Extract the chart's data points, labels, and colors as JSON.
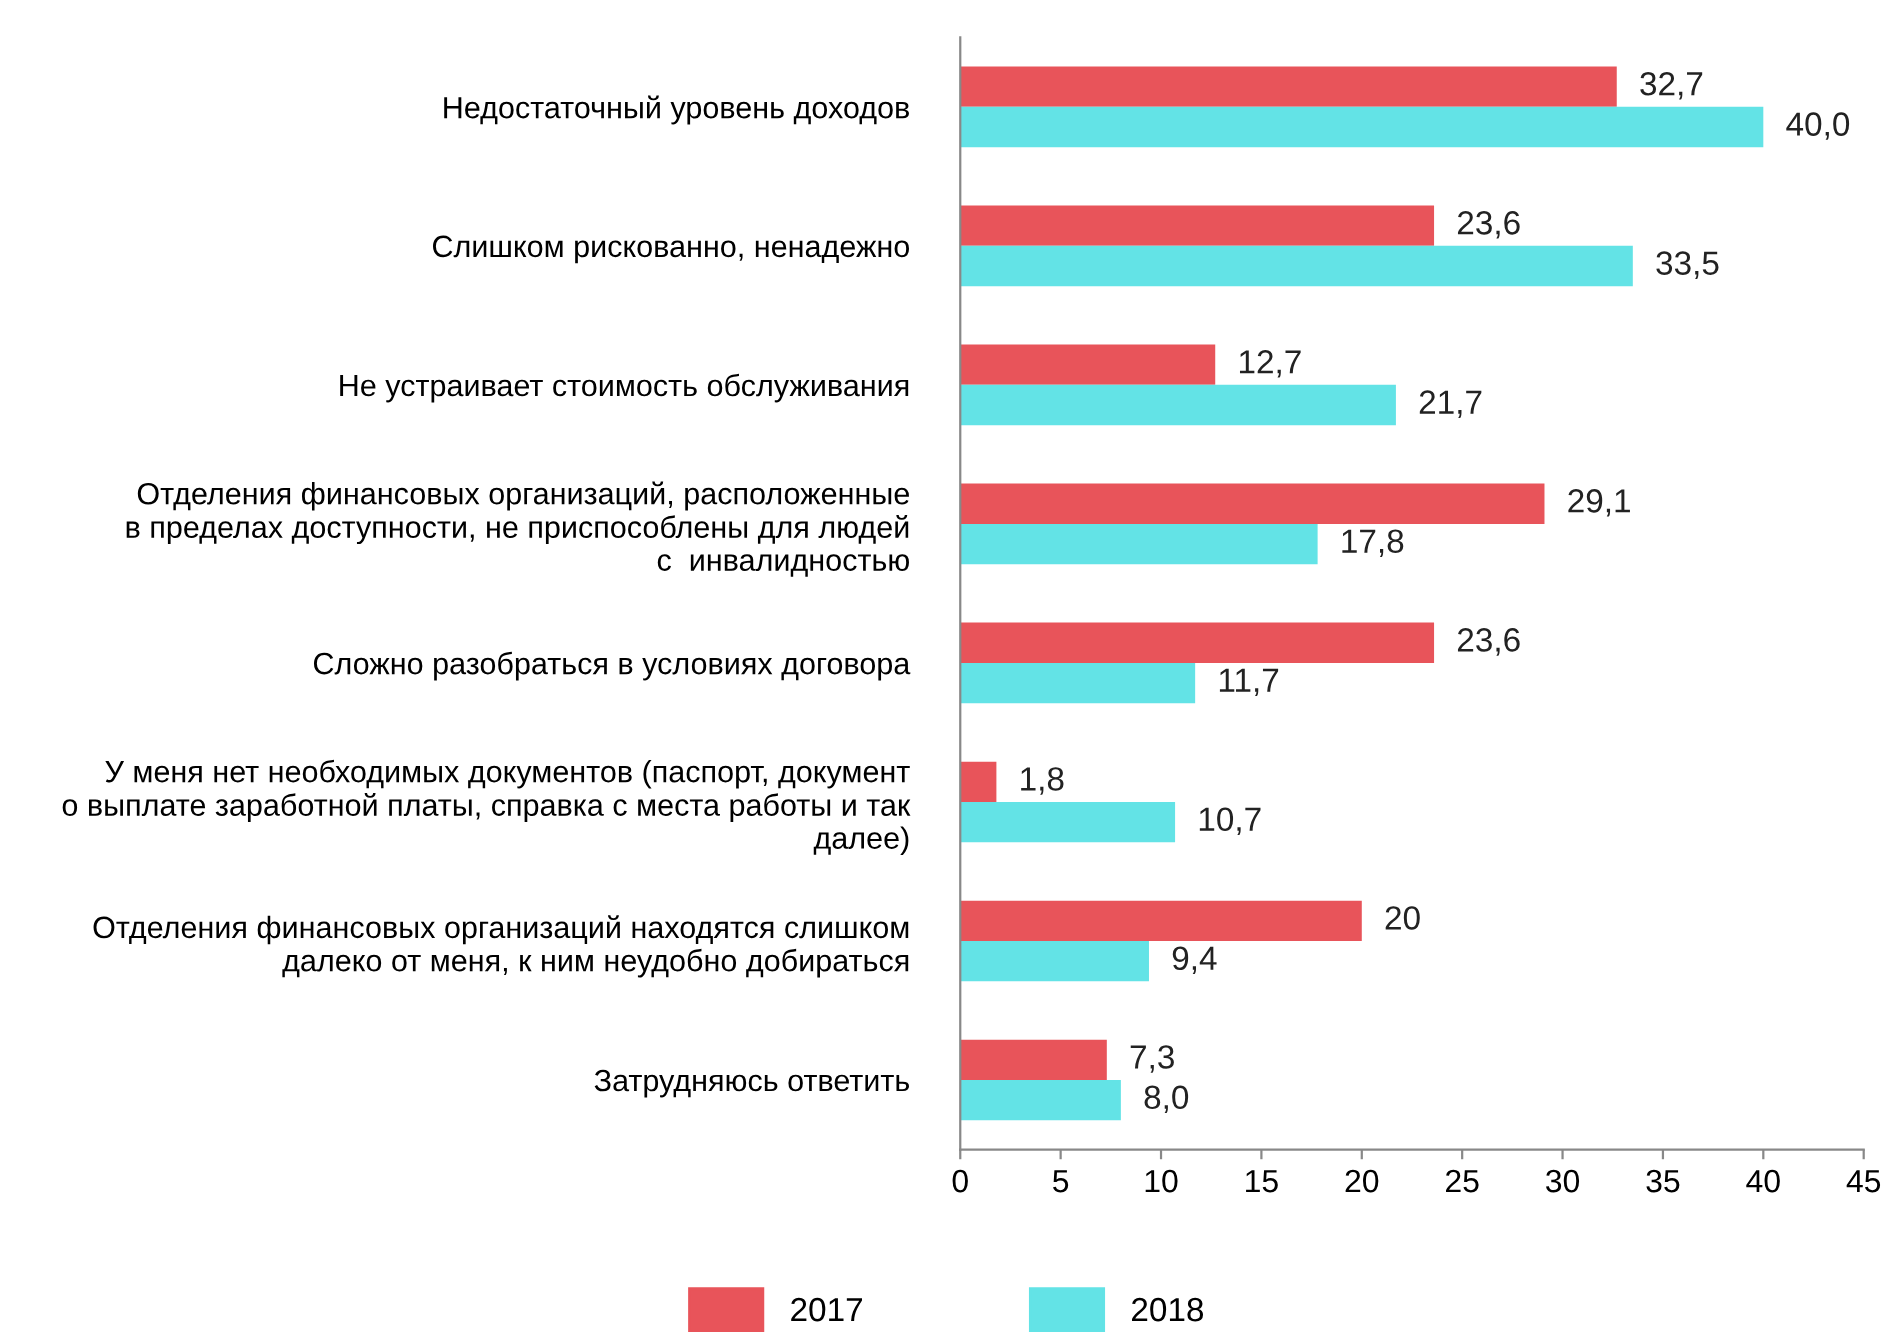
{
  "chart_data": {
    "type": "bar",
    "orientation": "horizontal",
    "categories": [
      "Недостаточный уровень доходов",
      "Слишком рискованно, ненадежно",
      "Не устраивает стоимость обслуживания",
      "Отделения финансовых организаций, расположенные\nв пределах доступности, не приспособлены для людей\nс  инвалидностью",
      "Сложно разобраться в условиях договора",
      "У меня нет необходимых документов (паспорт, документ\nо выплате заработной платы, справка с места работы и так\nдалее)",
      "Отделения финансовых организаций находятся слишком\nдалеко от меня, к ним неудобно добираться",
      "Затрудняюсь ответить"
    ],
    "series": [
      {
        "name": "2017",
        "color": "#e8545a",
        "values": [
          32.7,
          23.6,
          12.7,
          29.1,
          23.6,
          1.8,
          20,
          7.3
        ],
        "value_labels": [
          "32,7",
          "23,6",
          "12,7",
          "29,1",
          "23,6",
          "1,8",
          "20",
          "7,3"
        ]
      },
      {
        "name": "2018",
        "color": "#63e3e6",
        "values": [
          40.0,
          33.5,
          21.7,
          17.8,
          11.7,
          10.7,
          9.4,
          8.0
        ],
        "value_labels": [
          "40,0",
          "33,5",
          "21,7",
          "17,8",
          "11,7",
          "10,7",
          "9,4",
          "8,0"
        ]
      }
    ],
    "xlim": [
      0,
      45
    ],
    "xticks": [
      0,
      5,
      10,
      15,
      20,
      25,
      30,
      35,
      40,
      45
    ],
    "grid": false,
    "legend": "bottom"
  }
}
